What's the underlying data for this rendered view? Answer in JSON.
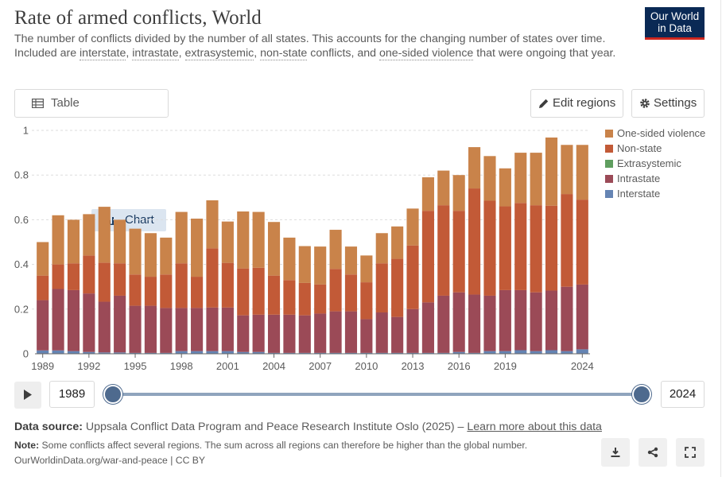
{
  "header": {
    "title": "Rate of armed conflicts, World",
    "subtitle_pre": "The number of conflicts divided by the number of all states. This accounts for the changing number of states over time. Included are ",
    "subtitle_t1": "interstate",
    "subtitle_s1": ", ",
    "subtitle_t2": "intrastate",
    "subtitle_s2": ", ",
    "subtitle_t3": "extrasystemic",
    "subtitle_s3": ", ",
    "subtitle_t4": "non-state",
    "subtitle_s4": " conflicts, and ",
    "subtitle_t5": "one-sided violence",
    "subtitle_post": " that were ongoing that year.",
    "logo_line1": "Our World",
    "logo_line2": "in Data"
  },
  "controls": {
    "tab_table": "Table",
    "tab_chart": "Chart",
    "edit_regions": "Edit regions",
    "settings": "Settings"
  },
  "timeline": {
    "start_year": "1989",
    "end_year": "2024"
  },
  "footer": {
    "source_label": "Data source:",
    "source_text": " Uppsala Conflict Data Program and Peace Research Institute Oslo (2025) – ",
    "source_link": "Learn more about this data",
    "note_label": "Note:",
    "note_text": " Some conflicts affect several regions. The sum across all regions can therefore be higher than the global number.",
    "license": "OurWorldinData.org/war-and-peace | CC BY"
  },
  "colors": {
    "one_sided": "#c9834a",
    "non_state": "#c25a37",
    "extrasystemic": "#5f9e5f",
    "intrastate": "#9b4a57",
    "interstate": "#6584b3",
    "grid": "#dddddd",
    "axis": "#666666"
  },
  "chart_data": {
    "type": "bar",
    "stacked": true,
    "title": "Rate of armed conflicts, World",
    "xlabel": "",
    "ylabel": "",
    "ylim": [
      0,
      1
    ],
    "yticks": [
      0,
      0.2,
      0.4,
      0.6,
      0.8,
      1
    ],
    "yticklabels": [
      "0",
      "0.2",
      "0.4",
      "0.6",
      "0.8",
      "1"
    ],
    "xticklabels": [
      "1989",
      "1992",
      "1995",
      "1998",
      "2001",
      "2004",
      "2007",
      "2010",
      "2013",
      "2016",
      "2019",
      "2024"
    ],
    "categories": [
      "1989",
      "1990",
      "1991",
      "1992",
      "1993",
      "1994",
      "1995",
      "1996",
      "1997",
      "1998",
      "1999",
      "2000",
      "2001",
      "2002",
      "2003",
      "2004",
      "2005",
      "2006",
      "2007",
      "2008",
      "2009",
      "2010",
      "2011",
      "2012",
      "2013",
      "2014",
      "2015",
      "2016",
      "2017",
      "2018",
      "2019",
      "2020",
      "2021",
      "2022",
      "2023",
      "2024"
    ],
    "legend_position": "right",
    "series": [
      {
        "name": "Interstate",
        "color_key": "interstate",
        "values": [
          0.015,
          0.015,
          0.012,
          0.008,
          0.006,
          0.006,
          0.004,
          0.004,
          0.004,
          0.012,
          0.012,
          0.012,
          0.012,
          0.008,
          0.008,
          0.004,
          0.004,
          0.004,
          0.004,
          0.004,
          0.004,
          0.004,
          0.004,
          0.004,
          0.004,
          0.004,
          0.004,
          0.008,
          0.004,
          0.012,
          0.012,
          0.016,
          0.012,
          0.016,
          0.012,
          0.02
        ]
      },
      {
        "name": "Intrastate",
        "color_key": "intrastate",
        "values": [
          0.225,
          0.275,
          0.273,
          0.262,
          0.227,
          0.254,
          0.211,
          0.211,
          0.201,
          0.193,
          0.193,
          0.195,
          0.195,
          0.164,
          0.167,
          0.171,
          0.171,
          0.168,
          0.176,
          0.186,
          0.186,
          0.151,
          0.181,
          0.161,
          0.196,
          0.226,
          0.256,
          0.267,
          0.261,
          0.248,
          0.273,
          0.269,
          0.263,
          0.267,
          0.288,
          0.29
        ]
      },
      {
        "name": "Extrasystemic",
        "color_key": "extrasystemic",
        "values": [
          0,
          0,
          0,
          0,
          0,
          0,
          0,
          0,
          0,
          0,
          0,
          0,
          0,
          0,
          0,
          0,
          0,
          0,
          0,
          0,
          0,
          0,
          0,
          0,
          0,
          0,
          0,
          0,
          0,
          0,
          0,
          0,
          0,
          0,
          0,
          0
        ]
      },
      {
        "name": "Non-state",
        "color_key": "non_state",
        "values": [
          0.11,
          0.11,
          0.12,
          0.17,
          0.175,
          0.145,
          0.14,
          0.13,
          0.15,
          0.2,
          0.14,
          0.265,
          0.2,
          0.21,
          0.21,
          0.175,
          0.155,
          0.145,
          0.13,
          0.19,
          0.165,
          0.165,
          0.22,
          0.26,
          0.285,
          0.41,
          0.405,
          0.365,
          0.475,
          0.425,
          0.375,
          0.39,
          0.39,
          0.38,
          0.415,
          0.38
        ]
      },
      {
        "name": "One-sided violence",
        "color_key": "one_sided",
        "values": [
          0.15,
          0.22,
          0.195,
          0.185,
          0.25,
          0.195,
          0.205,
          0.195,
          0.165,
          0.23,
          0.26,
          0.215,
          0.185,
          0.255,
          0.25,
          0.24,
          0.19,
          0.165,
          0.17,
          0.175,
          0.125,
          0.12,
          0.135,
          0.145,
          0.165,
          0.15,
          0.155,
          0.16,
          0.185,
          0.2,
          0.17,
          0.225,
          0.235,
          0.305,
          0.22,
          0.245
        ]
      }
    ]
  }
}
